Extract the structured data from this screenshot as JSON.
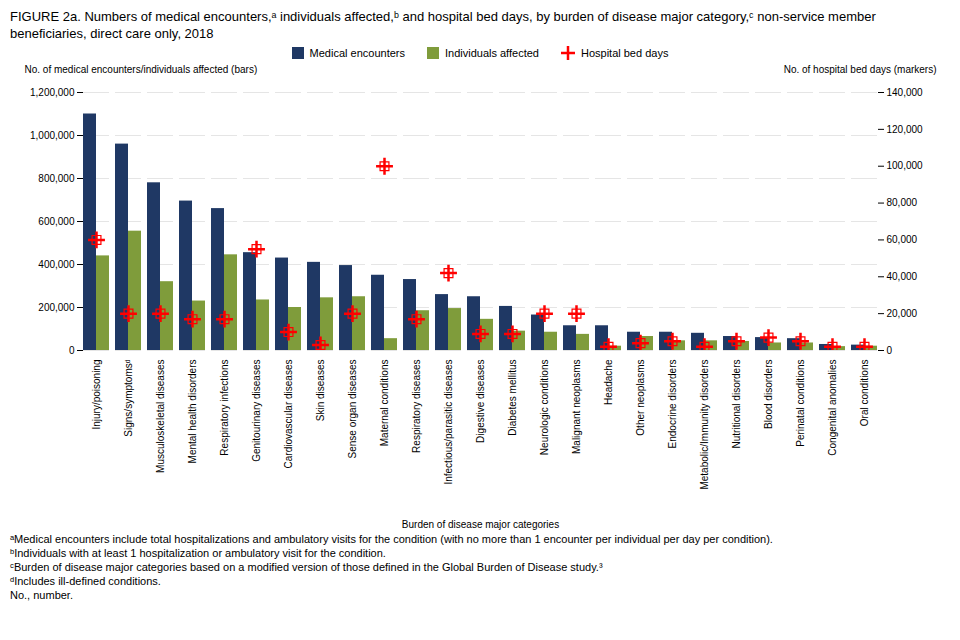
{
  "chart_data": {
    "type": "bar",
    "title": "FIGURE 2a. Numbers of medical encounters,ᵃ individuals affected,ᵇ and hospital bed days, by burden of disease major category,ᶜ non-service member beneficiaries, direct care only, 2018",
    "xlabel": "Burden of disease major categories",
    "ylabel": "No. of medical encounters/individuals affected (bars)",
    "y2label": "No. of hospital bed days (markers)",
    "categories": [
      "Injury/poisoning",
      "Signs/symptomsᵈ",
      "Musculoskeletal diseases",
      "Mental health disorders",
      "Respiratory infections",
      "Genitourinary diseases",
      "Cardiovascular diseases",
      "Skin diseases",
      "Sense organ diseases",
      "Maternal conditions",
      "Respiratory diseases",
      "Infectious/parasitic diseases",
      "Digestive diseases",
      "Diabetes mellitus",
      "Neurologic conditions",
      "Malignant neoplasms",
      "Headache",
      "Other neoplasms",
      "Endocrine disorders",
      "Metabolic/Immunity disorders",
      "Nutritional disorders",
      "Blood disorders",
      "Perinatal conditions",
      "Congenital anomalies",
      "Oral conditions"
    ],
    "series": [
      {
        "name": "Medical encounters",
        "color": "#1f3864",
        "values": [
          1100000,
          960000,
          780000,
          695000,
          660000,
          455000,
          430000,
          410000,
          395000,
          350000,
          330000,
          260000,
          250000,
          205000,
          165000,
          115000,
          115000,
          85000,
          85000,
          80000,
          65000,
          60000,
          55000,
          28000,
          25000
        ]
      },
      {
        "name": "Individuals affected",
        "color": "#7f9c3b",
        "values": [
          440000,
          555000,
          320000,
          230000,
          445000,
          235000,
          200000,
          245000,
          250000,
          55000,
          185000,
          195000,
          145000,
          90000,
          85000,
          75000,
          20000,
          65000,
          45000,
          45000,
          42000,
          35000,
          35000,
          18000,
          20000
        ]
      },
      {
        "name": "Hospital bed days",
        "color": "#ff0000",
        "axis": "y2",
        "type": "scatter",
        "marker": "plus",
        "values": [
          60000,
          20000,
          20000,
          17000,
          17000,
          55000,
          10000,
          3000,
          20000,
          100000,
          17000,
          42000,
          9000,
          9000,
          20000,
          20000,
          2000,
          4000,
          5000,
          2000,
          5000,
          7000,
          5000,
          2000,
          2000
        ]
      }
    ],
    "ylim": [
      0,
      1200000
    ],
    "yticks": [
      0,
      {
        "value": 200000,
        "label": "200,000"
      },
      {
        "value": 400000,
        "label": "400,000"
      },
      {
        "value": 600000,
        "label": "600,000"
      },
      {
        "value": 800000,
        "label": "800,000"
      },
      {
        "value": 1000000,
        "label": "1,000,000"
      },
      {
        "value": 1200000,
        "label": "1,200,000"
      }
    ],
    "y2lim": [
      0,
      140000
    ],
    "y2ticks": [
      0,
      {
        "value": 20000,
        "label": "20,000"
      },
      {
        "value": 40000,
        "label": "40,000"
      },
      {
        "value": 60000,
        "label": "60,000"
      },
      {
        "value": 80000,
        "label": "80,000"
      },
      {
        "value": 100000,
        "label": "100,000"
      },
      {
        "value": 120000,
        "label": "120,000"
      },
      {
        "value": 140000,
        "label": "140,000"
      }
    ],
    "grid": true,
    "legend": "top",
    "annotations": [
      "ᵃMedical encounters include total hospitalizations and ambulatory visits for the condition (with no more than 1 encounter per individual per day per condition).",
      "ᵇIndividuals with at least 1 hospitalization or ambulatory visit for the condition.",
      "ᶜBurden of disease major categories based on a modified version of those defined in the Global Burden of Disease study.³",
      "ᵈIncludes ill-defined conditions.",
      "No., number."
    ]
  }
}
